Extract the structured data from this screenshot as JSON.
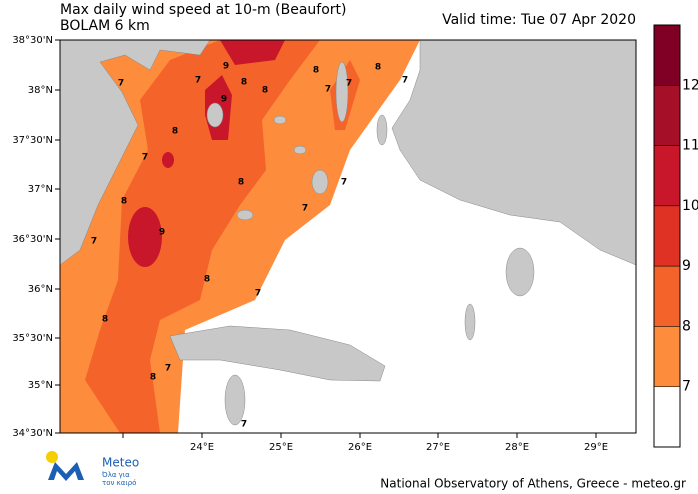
{
  "header": {
    "title": "Max daily wind speed at 10-m (Beaufort)",
    "subtitle": "BOLAM 6 km",
    "valid_time": "Valid time: Tue 07 Apr 2020"
  },
  "map": {
    "lat_labels": [
      "38°30'N",
      "38°N",
      "37°30'N",
      "37°N",
      "36°30'N",
      "36°N",
      "35°30'N",
      "35°N",
      "34°30'N"
    ],
    "lon_labels": [
      "24°E",
      "25°E",
      "26°E",
      "27°E",
      "28°E",
      "29°E"
    ],
    "contour_labels": [
      7,
      7,
      9,
      8,
      9,
      8,
      8,
      7,
      7,
      8,
      7,
      8,
      7,
      8,
      7,
      7,
      8,
      9,
      7,
      8,
      7,
      8,
      7,
      8,
      7
    ]
  },
  "colorbar": {
    "labels": [
      12,
      11,
      10,
      9,
      8,
      7
    ],
    "colors": [
      "#7f0024",
      "#a50f28",
      "#c8172b",
      "#e03224",
      "#f4632a",
      "#fd8d3c",
      "#ffffff"
    ]
  },
  "logo": {
    "name": "Meteo",
    "tagline_1": "Όλα για",
    "tagline_2": "τον καιρό"
  },
  "footer": "National Observatory of Athens, Greece - meteo.gr"
}
